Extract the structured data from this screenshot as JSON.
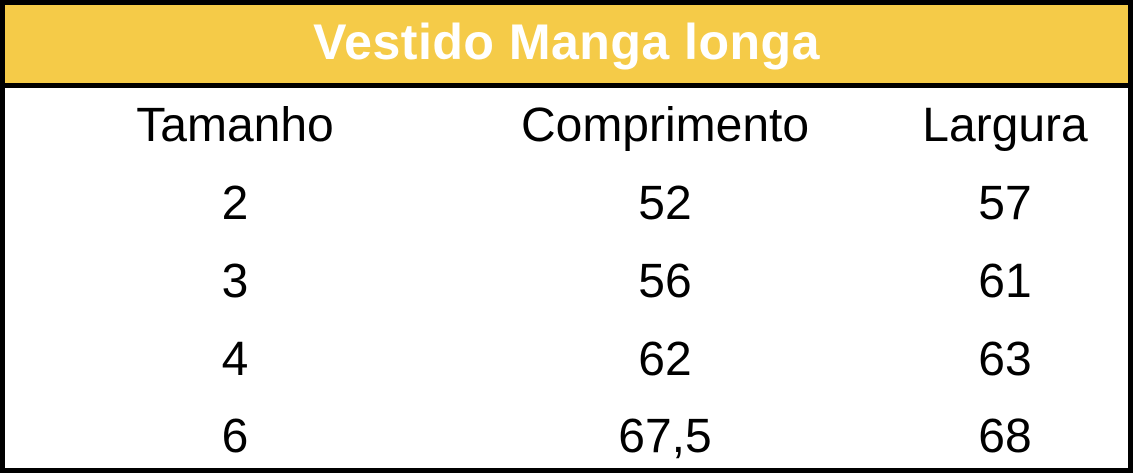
{
  "colors": {
    "header_background": "#F5CB48",
    "border": "#000000",
    "header_text": "#FFFFFF",
    "body_text": "#000000"
  },
  "table": {
    "title": "Vestido Manga longa",
    "columns": [
      "Tamanho",
      "Comprimento",
      "Largura"
    ],
    "rows": [
      [
        "2",
        "52",
        "57"
      ],
      [
        "3",
        "56",
        "61"
      ],
      [
        "4",
        "62",
        "63"
      ],
      [
        "6",
        "67,5",
        "68"
      ]
    ]
  }
}
